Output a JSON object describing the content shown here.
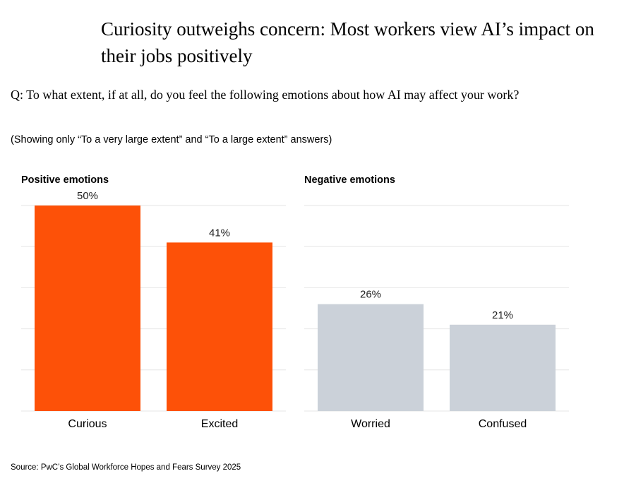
{
  "title": "Curiosity outweighs concern: Most workers view AI’s impact on their jobs positively",
  "question": "Q: To what extent, if at all, do you feel the following emotions about how AI may affect your work?",
  "note": "(Showing only “To a very large extent” and “To a large extent” answers)",
  "source": "Source: PwC’s Global Workforce Hopes and Fears Survey 2025",
  "chart_data": [
    {
      "type": "bar",
      "title": "Positive emotions",
      "categories": [
        "Curious",
        "Excited"
      ],
      "values": [
        50,
        41
      ],
      "labels": [
        "50%",
        "41%"
      ],
      "ylim": [
        0,
        50
      ],
      "grid": true,
      "color": "#FD5108"
    },
    {
      "type": "bar",
      "title": "Negative emotions",
      "categories": [
        "Worried",
        "Confused"
      ],
      "values": [
        26,
        21
      ],
      "labels": [
        "26%",
        "21%"
      ],
      "ylim": [
        0,
        50
      ],
      "grid": true,
      "color": "#CBD1D9"
    }
  ]
}
